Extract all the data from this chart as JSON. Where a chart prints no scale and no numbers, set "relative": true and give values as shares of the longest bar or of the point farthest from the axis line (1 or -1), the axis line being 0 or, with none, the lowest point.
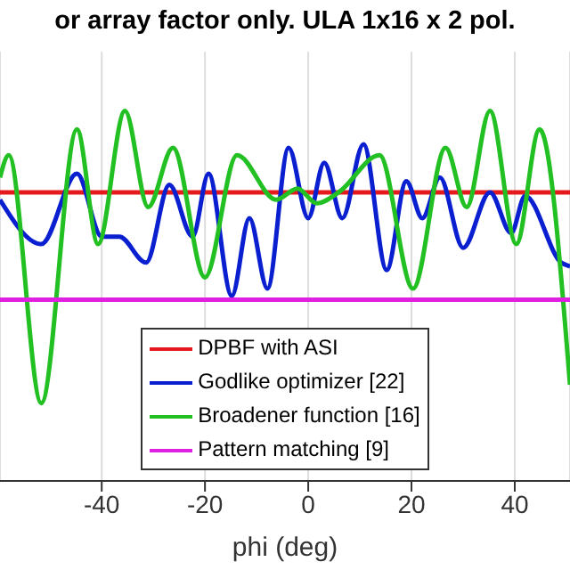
{
  "chart_data": {
    "type": "line",
    "title": "or array factor only. ULA 1x16 x 2 pol.",
    "xlabel": "phi (deg)",
    "relative": true,
    "xlim": [
      -59.7,
      50.7
    ],
    "xticks": [
      -40,
      -20,
      0,
      20,
      40
    ],
    "grid": "x",
    "legend": "bottom",
    "marker": "none",
    "line_style": "solid",
    "series": [
      {
        "name": "DPBF with ASI",
        "color": "#e41a1c",
        "x": [
          -59.7,
          50.7
        ],
        "values": [
          0.78,
          0.78
        ]
      },
      {
        "name": "Godlike optimizer [22]",
        "color": "#0a1fd0",
        "x": [
          -59.7,
          -51.7,
          -44.8,
          -40,
          -36.6,
          -31.4,
          -26.9,
          -22.4,
          -19.3,
          -14.8,
          -11.4,
          -7.9,
          -3.8,
          0,
          3.1,
          6.6,
          10.7,
          15.2,
          19,
          22.1,
          25.5,
          30,
          35.2,
          39.3,
          42,
          49,
          50.7
        ],
        "values": [
          0.76,
          0.64,
          0.83,
          0.66,
          0.66,
          0.59,
          0.8,
          0.66,
          0.83,
          0.5,
          0.71,
          0.52,
          0.9,
          0.71,
          0.86,
          0.71,
          0.91,
          0.57,
          0.81,
          0.71,
          0.82,
          0.63,
          0.78,
          0.67,
          0.77,
          0.59,
          0.58
        ]
      },
      {
        "name": "Broadener function [16]",
        "color": "#22c022",
        "x": [
          -59.7,
          -58,
          -51.7,
          -44.8,
          -40.7,
          -35.5,
          -31,
          -26.2,
          -20,
          -13.8,
          -6.2,
          -2.1,
          1.7,
          5.9,
          13.8,
          20.3,
          26.6,
          30.7,
          35.2,
          40.3,
          44.8,
          50.7
        ],
        "values": [
          0.82,
          0.88,
          0.21,
          0.95,
          0.64,
          1,
          0.74,
          0.9,
          0.55,
          0.88,
          0.76,
          0.79,
          0.75,
          0.78,
          0.88,
          0.52,
          0.9,
          0.74,
          1,
          0.64,
          0.95,
          0.26
        ]
      },
      {
        "name": "Pattern matching [9]",
        "color": "#e020e0",
        "x": [
          -59.7,
          50.7
        ],
        "values": [
          0.49,
          0.49
        ]
      }
    ]
  }
}
